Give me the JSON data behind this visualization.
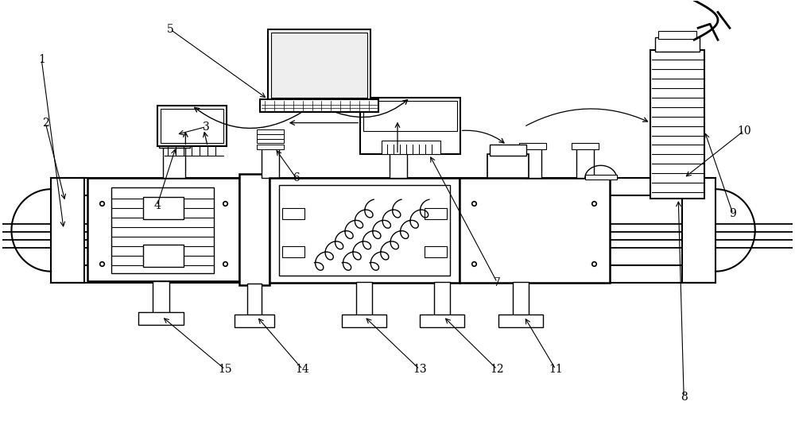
{
  "bg_color": "#ffffff",
  "fig_width": 10.0,
  "fig_height": 5.54,
  "lc": "#000000"
}
